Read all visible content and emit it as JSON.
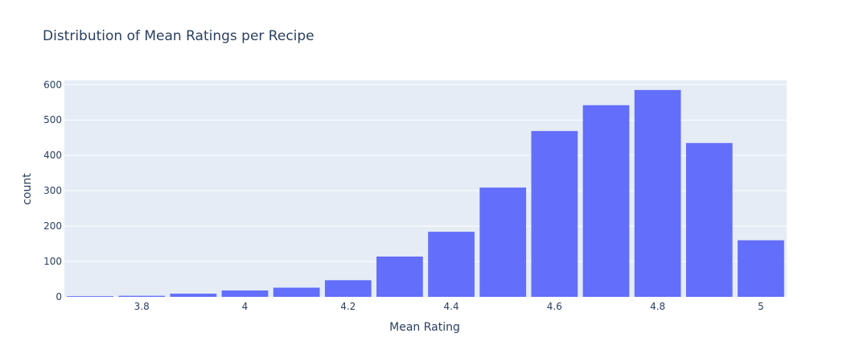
{
  "chart_data": {
    "type": "bar",
    "title": "Distribution of Mean Ratings per Recipe",
    "xlabel": "Mean Rating",
    "ylabel": "count",
    "xlim": [
      3.65,
      5.05
    ],
    "ylim": [
      0,
      612
    ],
    "x_ticks": [
      3.8,
      4,
      4.2,
      4.4,
      4.6,
      4.8,
      5
    ],
    "x_tick_labels": [
      "3.8",
      "4",
      "4.2",
      "4.4",
      "4.6",
      "4.8",
      "5"
    ],
    "y_ticks": [
      0,
      100,
      200,
      300,
      400,
      500,
      600
    ],
    "y_tick_labels": [
      "0",
      "100",
      "200",
      "300",
      "400",
      "500",
      "600"
    ],
    "bin_width": 0.1,
    "bins": [
      {
        "x0": 3.65,
        "x1": 3.75,
        "count": 2
      },
      {
        "x0": 3.75,
        "x1": 3.85,
        "count": 3
      },
      {
        "x0": 3.85,
        "x1": 3.95,
        "count": 9
      },
      {
        "x0": 3.95,
        "x1": 4.05,
        "count": 18
      },
      {
        "x0": 4.05,
        "x1": 4.15,
        "count": 26
      },
      {
        "x0": 4.15,
        "x1": 4.25,
        "count": 47
      },
      {
        "x0": 4.25,
        "x1": 4.35,
        "count": 114
      },
      {
        "x0": 4.35,
        "x1": 4.45,
        "count": 184
      },
      {
        "x0": 4.45,
        "x1": 4.55,
        "count": 309
      },
      {
        "x0": 4.55,
        "x1": 4.65,
        "count": 469
      },
      {
        "x0": 4.65,
        "x1": 4.75,
        "count": 542
      },
      {
        "x0": 4.75,
        "x1": 4.85,
        "count": 585
      },
      {
        "x0": 4.85,
        "x1": 4.95,
        "count": 435
      },
      {
        "x0": 4.95,
        "x1": 5.05,
        "count": 160
      }
    ],
    "grid": true,
    "colors": {
      "bar": "#636efa",
      "plot_bg": "#e5ecf6",
      "grid": "#ffffff",
      "text": "#2a3f5f"
    }
  }
}
